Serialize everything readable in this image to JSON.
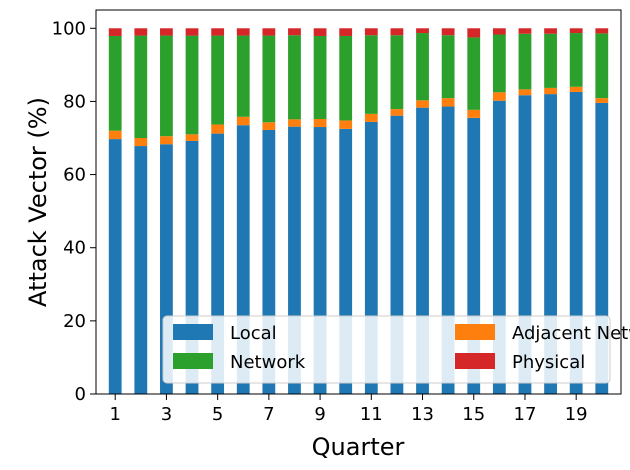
{
  "chart_data": {
    "type": "bar",
    "stacked": true,
    "xlabel": "Quarter",
    "ylabel": "Attack Vector (%)",
    "ylim": [
      0,
      105
    ],
    "yticks": [
      0,
      20,
      40,
      60,
      80,
      100
    ],
    "categories": [
      "1",
      "2",
      "3",
      "4",
      "5",
      "6",
      "7",
      "8",
      "9",
      "10",
      "11",
      "12",
      "13",
      "14",
      "15",
      "16",
      "17",
      "18",
      "19",
      "20"
    ],
    "xtick_labels_shown": [
      "1",
      "3",
      "5",
      "7",
      "9",
      "11",
      "13",
      "15",
      "17",
      "19"
    ],
    "grid": false,
    "legend": {
      "position": "bottom-right",
      "columns": 2
    },
    "series": [
      {
        "name": "Local",
        "color": "#1f77b4",
        "values": [
          69.7,
          67.8,
          68.3,
          69.2,
          71.2,
          73.5,
          72.2,
          73.1,
          73.0,
          72.5,
          74.4,
          76.1,
          78.3,
          78.6,
          75.5,
          80.2,
          81.7,
          82.0,
          82.6,
          79.6
        ]
      },
      {
        "name": "Adjacent Network",
        "color": "#ff7f0e",
        "values": [
          2.3,
          2.2,
          2.2,
          1.8,
          2.5,
          2.3,
          2.1,
          2.0,
          2.2,
          2.3,
          2.2,
          1.8,
          2.0,
          2.3,
          2.2,
          2.3,
          1.6,
          1.7,
          1.4,
          1.3
        ]
      },
      {
        "name": "Network",
        "color": "#2ca02c",
        "values": [
          25.9,
          28.0,
          27.5,
          27.0,
          24.3,
          22.2,
          23.7,
          23.0,
          22.7,
          23.1,
          21.5,
          20.2,
          18.4,
          17.2,
          19.8,
          15.8,
          15.2,
          14.8,
          14.7,
          17.7
        ]
      },
      {
        "name": "Physical",
        "color": "#d62728",
        "values": [
          2.1,
          2.0,
          2.0,
          2.0,
          2.0,
          2.0,
          2.0,
          1.9,
          2.1,
          2.1,
          1.9,
          1.9,
          1.3,
          1.9,
          2.5,
          1.7,
          1.5,
          1.5,
          1.3,
          1.4
        ]
      }
    ]
  }
}
